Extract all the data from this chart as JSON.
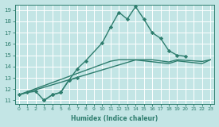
{
  "background_color": "#c3e5e5",
  "grid_color": "#b0d8d8",
  "line_color": "#2e7d6e",
  "xlabel": "Humidex (Indice chaleur)",
  "xlim": [
    -0.5,
    23.5
  ],
  "ylim": [
    10.7,
    19.5
  ],
  "yticks": [
    11,
    12,
    13,
    14,
    15,
    16,
    17,
    18,
    19
  ],
  "xticks": [
    0,
    1,
    2,
    3,
    4,
    5,
    6,
    7,
    8,
    9,
    10,
    11,
    12,
    13,
    14,
    15,
    16,
    17,
    18,
    19,
    20,
    21,
    22,
    23
  ],
  "series": [
    {
      "x": [
        0,
        1,
        2,
        3,
        4,
        5,
        6,
        7,
        8,
        10,
        11,
        12,
        13,
        14,
        15,
        16,
        17,
        18,
        19,
        20
      ],
      "y": [
        11.5,
        11.7,
        11.8,
        11.0,
        11.5,
        11.7,
        12.8,
        13.8,
        14.5,
        16.1,
        17.5,
        18.8,
        18.2,
        19.3,
        18.2,
        17.0,
        16.5,
        15.4,
        15.0,
        14.9
      ],
      "marker": "D",
      "markersize": 2.2,
      "linewidth": 1.0
    },
    {
      "x": [
        3,
        4,
        5,
        6,
        7
      ],
      "y": [
        11.0,
        11.5,
        11.7,
        12.8,
        13.0
      ],
      "marker": "D",
      "markersize": 2.2,
      "linewidth": 1.0
    },
    {
      "x": [
        0,
        1,
        2,
        3,
        4,
        5,
        6,
        7,
        8,
        9,
        10,
        11,
        12,
        13,
        14,
        15,
        16,
        17,
        18,
        19,
        20,
        21,
        22,
        23
      ],
      "y": [
        11.5,
        11.72,
        11.94,
        12.16,
        12.38,
        12.6,
        12.82,
        13.04,
        13.26,
        13.48,
        13.7,
        13.92,
        14.14,
        14.36,
        14.58,
        14.5,
        14.42,
        14.34,
        14.26,
        14.5,
        14.42,
        14.34,
        14.26,
        14.6
      ],
      "marker": null,
      "markersize": 0,
      "linewidth": 1.0
    },
    {
      "x": [
        0,
        1,
        2,
        3,
        4,
        5,
        6,
        7,
        8,
        9,
        10,
        11,
        12,
        13,
        14,
        15,
        16,
        17,
        18,
        19,
        20,
        21,
        22,
        23
      ],
      "y": [
        11.5,
        11.77,
        12.04,
        12.31,
        12.58,
        12.85,
        13.12,
        13.39,
        13.66,
        13.93,
        14.2,
        14.47,
        14.6,
        14.6,
        14.6,
        14.6,
        14.6,
        14.5,
        14.4,
        14.6,
        14.55,
        14.5,
        14.45,
        14.6
      ],
      "marker": null,
      "markersize": 0,
      "linewidth": 1.0
    }
  ]
}
